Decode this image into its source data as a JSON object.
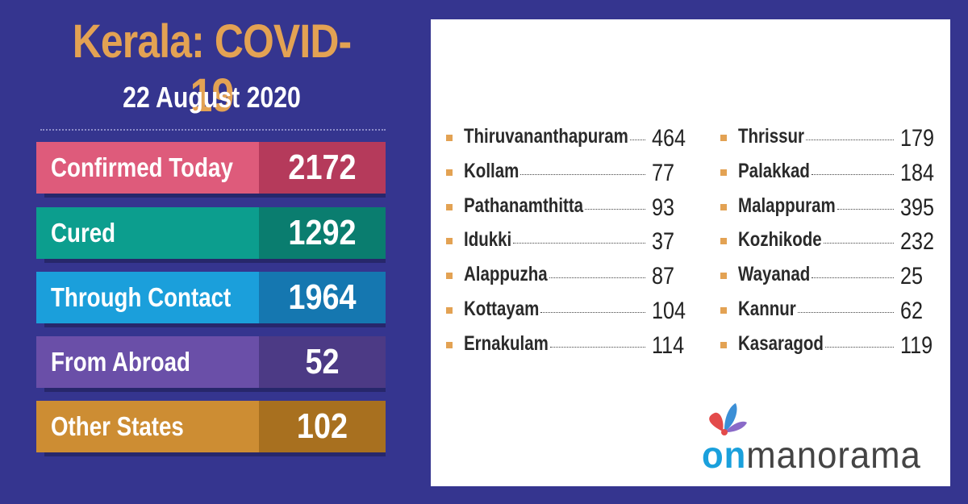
{
  "header": {
    "title": "Kerala: COVID-19",
    "date": "22 August 2020"
  },
  "stats": [
    {
      "label": "Confirmed Today",
      "value": "2172",
      "label_color": "#de5b7b",
      "value_color": "#b53a5b"
    },
    {
      "label": "Cured",
      "value": "1292",
      "label_color": "#0c9e8e",
      "value_color": "#0a7d6f"
    },
    {
      "label": "Through Contact",
      "value": "1964",
      "label_color": "#1b9fdb",
      "value_color": "#1577b0"
    },
    {
      "label": "From Abroad",
      "value": "52",
      "label_color": "#6a4fa8",
      "value_color": "#4c3a85"
    },
    {
      "label": "Other States",
      "value": "102",
      "label_color": "#cd8d33",
      "value_color": "#a8701f"
    }
  ],
  "districts_left": [
    {
      "name": "Thiruvananthapuram",
      "count": "464"
    },
    {
      "name": "Kollam",
      "count": "77"
    },
    {
      "name": "Pathanamthitta",
      "count": "93"
    },
    {
      "name": "Idukki",
      "count": "37"
    },
    {
      "name": "Alappuzha",
      "count": "87"
    },
    {
      "name": "Kottayam",
      "count": "104"
    },
    {
      "name": "Ernakulam",
      "count": "114"
    }
  ],
  "districts_right": [
    {
      "name": "Thrissur",
      "count": "179"
    },
    {
      "name": "Palakkad",
      "count": "184"
    },
    {
      "name": "Malappuram",
      "count": "395"
    },
    {
      "name": "Kozhikode",
      "count": "232"
    },
    {
      "name": "Wayanad",
      "count": "25"
    },
    {
      "name": "Kannur",
      "count": "62"
    },
    {
      "name": "Kasaragod",
      "count": "119"
    }
  ],
  "logo": {
    "on": "on",
    "manorama": "manorama"
  },
  "colors": {
    "background": "#35358f",
    "title": "#e3a253",
    "bullet": "#e3a253",
    "logo_blue": "#1aa0dc"
  }
}
